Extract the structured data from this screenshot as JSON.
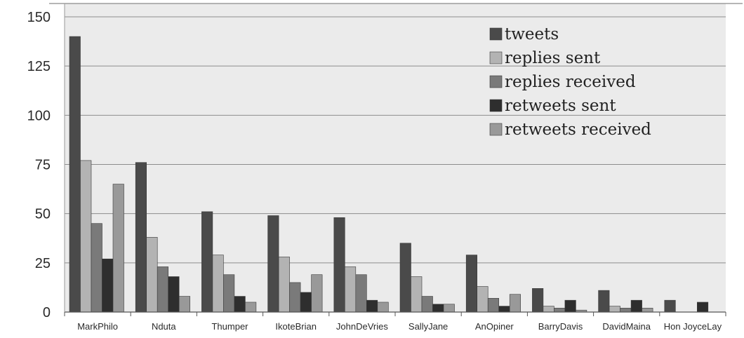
{
  "chart_data": {
    "type": "bar",
    "title": "",
    "xlabel": "",
    "ylabel": "",
    "ylim": [
      0,
      150
    ],
    "yticks": [
      0,
      25,
      50,
      75,
      100,
      125,
      150
    ],
    "grid": true,
    "legend_position": "top-right",
    "categories": [
      "MarkPhilo",
      "Nduta",
      "Thumper",
      "IkoteBrian",
      "JohnDeVries",
      "SallyJane",
      "AnOpiner",
      "BarryDavis",
      "DavidMaina",
      "Hon JoyceLay"
    ],
    "series": [
      {
        "name": "tweets",
        "color": "#4a4a4a",
        "values": [
          140,
          76,
          51,
          49,
          48,
          35,
          29,
          12,
          11,
          6
        ]
      },
      {
        "name": "replies sent",
        "color": "#b3b3b3",
        "values": [
          77,
          38,
          29,
          28,
          23,
          18,
          13,
          3,
          3,
          0
        ]
      },
      {
        "name": "replies received",
        "color": "#7a7a7a",
        "values": [
          45,
          23,
          19,
          15,
          19,
          8,
          7,
          2,
          2,
          0
        ]
      },
      {
        "name": "retweets sent",
        "color": "#2e2e2e",
        "values": [
          27,
          18,
          8,
          10,
          6,
          4,
          3,
          6,
          6,
          5
        ]
      },
      {
        "name": "retweets received",
        "color": "#999999",
        "values": [
          65,
          8,
          5,
          19,
          5,
          4,
          9,
          1,
          2,
          0
        ]
      }
    ]
  }
}
